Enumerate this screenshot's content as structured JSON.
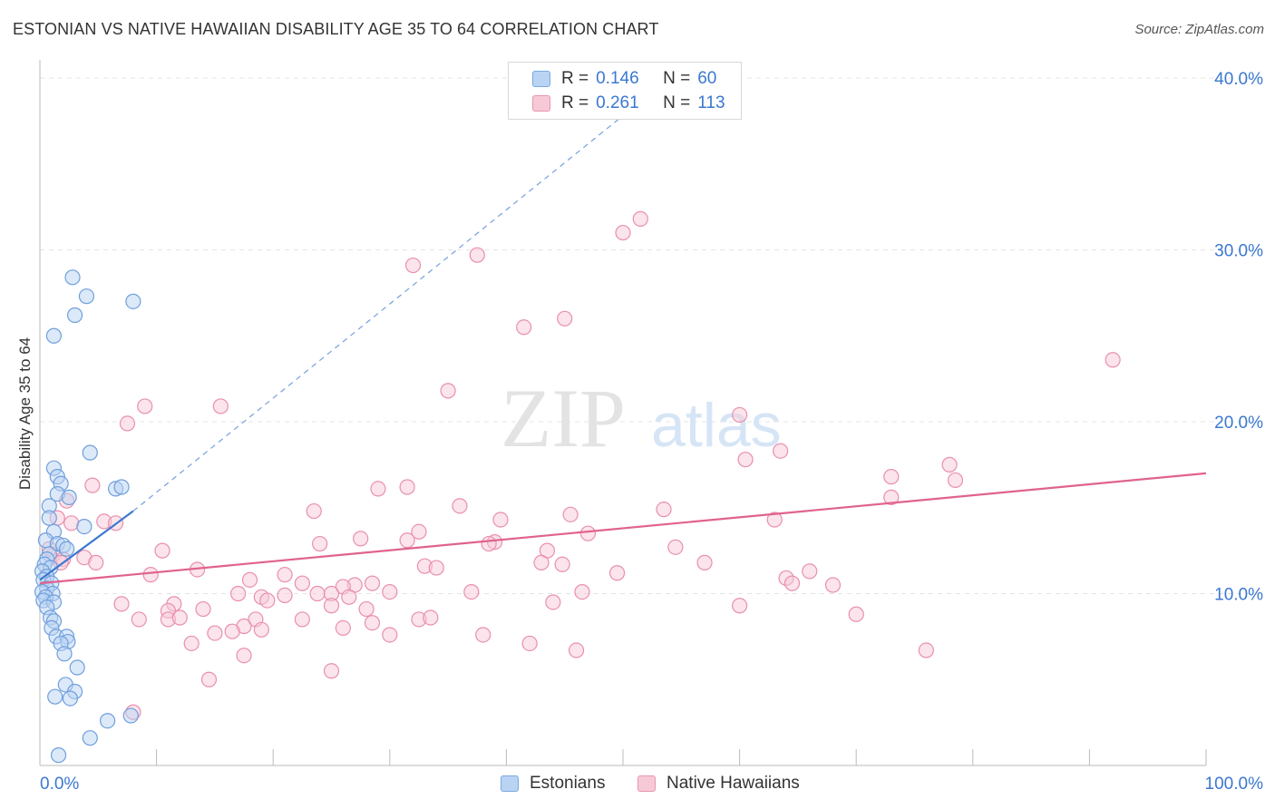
{
  "title": "ESTONIAN VS NATIVE HAWAIIAN DISABILITY AGE 35 TO 64 CORRELATION CHART",
  "source": "Source: ZipAtlas.com",
  "watermark": {
    "zip": "ZIP",
    "atlas": "atlas"
  },
  "legend": {
    "r_label": "R =",
    "n_label": "N =",
    "estonians": {
      "r": "0.146",
      "n": "60"
    },
    "hawaiians": {
      "r": "0.261",
      "n": "113"
    }
  },
  "colors": {
    "blue": "#3b78d0",
    "blue_fill": "#b9d3f3",
    "pink": "#e0628f",
    "pink_fill": "#f7c9d7",
    "grid": "#e4e4e4"
  },
  "chart_data": {
    "type": "scatter",
    "title": "ESTONIAN VS NATIVE HAWAIIAN DISABILITY AGE 35 TO 64 CORRELATION CHART",
    "xlabel": "",
    "ylabel": "Disability Age 35 to 64",
    "xlim": [
      0,
      100
    ],
    "ylim": [
      0,
      42
    ],
    "x_tick_labels": [
      "0.0%",
      "100.0%"
    ],
    "y_ticks": [
      10,
      20,
      30,
      40
    ],
    "y_tick_labels": [
      "10.0%",
      "20.0%",
      "30.0%",
      "40.0%"
    ],
    "legend_position": "bottom",
    "series": [
      {
        "name": "Estonians",
        "r": 0.146,
        "n": 60,
        "trend": {
          "x0": 0,
          "y0": 10.8,
          "x1": 8.0,
          "y1": 14.8,
          "dashed_to": [
            54,
            40
          ]
        },
        "points": [
          [
            2.8,
            28.4
          ],
          [
            4.0,
            27.3
          ],
          [
            8.0,
            27.0
          ],
          [
            3.0,
            26.2
          ],
          [
            1.2,
            25.0
          ],
          [
            4.3,
            18.2
          ],
          [
            1.2,
            17.3
          ],
          [
            1.5,
            16.8
          ],
          [
            1.8,
            16.4
          ],
          [
            6.5,
            16.1
          ],
          [
            7.0,
            16.2
          ],
          [
            1.5,
            15.8
          ],
          [
            2.5,
            15.6
          ],
          [
            0.8,
            15.1
          ],
          [
            0.8,
            14.4
          ],
          [
            3.8,
            13.9
          ],
          [
            1.2,
            13.6
          ],
          [
            0.5,
            13.1
          ],
          [
            1.5,
            12.9
          ],
          [
            2.0,
            12.8
          ],
          [
            2.3,
            12.6
          ],
          [
            0.8,
            12.3
          ],
          [
            0.6,
            12.0
          ],
          [
            0.4,
            11.7
          ],
          [
            0.9,
            11.5
          ],
          [
            0.2,
            11.3
          ],
          [
            0.6,
            11.0
          ],
          [
            0.3,
            10.8
          ],
          [
            1.0,
            10.6
          ],
          [
            0.6,
            10.3
          ],
          [
            0.2,
            10.1
          ],
          [
            1.1,
            10.0
          ],
          [
            0.5,
            9.8
          ],
          [
            0.3,
            9.6
          ],
          [
            1.2,
            9.5
          ],
          [
            0.6,
            9.2
          ],
          [
            0.9,
            8.6
          ],
          [
            1.2,
            8.4
          ],
          [
            1.0,
            8.0
          ],
          [
            1.4,
            7.5
          ],
          [
            2.3,
            7.5
          ],
          [
            2.4,
            7.2
          ],
          [
            1.8,
            7.1
          ],
          [
            2.1,
            6.5
          ],
          [
            3.2,
            5.7
          ],
          [
            2.2,
            4.7
          ],
          [
            3.0,
            4.3
          ],
          [
            1.3,
            4.0
          ],
          [
            2.6,
            3.9
          ],
          [
            5.8,
            2.6
          ],
          [
            7.8,
            2.9
          ],
          [
            4.3,
            1.6
          ],
          [
            1.6,
            0.6
          ]
        ]
      },
      {
        "name": "Native Hawaiians",
        "r": 0.261,
        "n": 113,
        "trend": {
          "x0": 0,
          "y0": 10.6,
          "x1": 100,
          "y1": 17.0
        },
        "points": [
          [
            51.5,
            31.8
          ],
          [
            50.0,
            31.0
          ],
          [
            37.5,
            29.7
          ],
          [
            32.0,
            29.1
          ],
          [
            45.0,
            26.0
          ],
          [
            41.5,
            25.5
          ],
          [
            92.0,
            23.6
          ],
          [
            35.0,
            21.8
          ],
          [
            9.0,
            20.9
          ],
          [
            15.5,
            20.9
          ],
          [
            7.5,
            19.9
          ],
          [
            60.0,
            20.4
          ],
          [
            63.5,
            18.3
          ],
          [
            60.5,
            17.8
          ],
          [
            78.0,
            17.5
          ],
          [
            73.0,
            16.8
          ],
          [
            78.5,
            16.6
          ],
          [
            4.5,
            16.3
          ],
          [
            73.0,
            15.6
          ],
          [
            31.5,
            16.2
          ],
          [
            29.0,
            16.1
          ],
          [
            2.3,
            15.4
          ],
          [
            36.0,
            15.1
          ],
          [
            53.5,
            14.9
          ],
          [
            23.5,
            14.8
          ],
          [
            45.5,
            14.6
          ],
          [
            1.5,
            14.4
          ],
          [
            5.5,
            14.2
          ],
          [
            39.5,
            14.3
          ],
          [
            6.5,
            14.1
          ],
          [
            2.7,
            14.1
          ],
          [
            63.0,
            14.3
          ],
          [
            32.5,
            13.6
          ],
          [
            47.0,
            13.5
          ],
          [
            27.5,
            13.2
          ],
          [
            31.5,
            13.1
          ],
          [
            39.0,
            13.0
          ],
          [
            38.5,
            12.9
          ],
          [
            24.0,
            12.9
          ],
          [
            54.5,
            12.7
          ],
          [
            43.5,
            12.5
          ],
          [
            10.5,
            12.5
          ],
          [
            1.2,
            12.3
          ],
          [
            2.0,
            12.0
          ],
          [
            0.8,
            12.6
          ],
          [
            3.8,
            12.1
          ],
          [
            1.8,
            11.8
          ],
          [
            4.8,
            11.8
          ],
          [
            43.0,
            11.8
          ],
          [
            44.8,
            11.7
          ],
          [
            57.0,
            11.8
          ],
          [
            33.0,
            11.6
          ],
          [
            34.0,
            11.5
          ],
          [
            13.5,
            11.4
          ],
          [
            66.0,
            11.3
          ],
          [
            49.5,
            11.2
          ],
          [
            9.5,
            11.1
          ],
          [
            21.0,
            11.1
          ],
          [
            64.0,
            10.9
          ],
          [
            18.0,
            10.8
          ],
          [
            22.5,
            10.6
          ],
          [
            27.0,
            10.5
          ],
          [
            26.0,
            10.4
          ],
          [
            64.5,
            10.6
          ],
          [
            28.5,
            10.6
          ],
          [
            68.0,
            10.5
          ],
          [
            30.0,
            10.1
          ],
          [
            17.0,
            10.0
          ],
          [
            23.8,
            10.0
          ],
          [
            46.5,
            10.1
          ],
          [
            37.0,
            10.1
          ],
          [
            25.0,
            10.0
          ],
          [
            19.0,
            9.8
          ],
          [
            21.0,
            9.9
          ],
          [
            26.5,
            9.8
          ],
          [
            19.5,
            9.6
          ],
          [
            11.5,
            9.4
          ],
          [
            7.0,
            9.4
          ],
          [
            44.0,
            9.5
          ],
          [
            60.0,
            9.3
          ],
          [
            11.0,
            9.0
          ],
          [
            14.0,
            9.1
          ],
          [
            25.0,
            9.3
          ],
          [
            28.0,
            9.1
          ],
          [
            70.0,
            8.8
          ],
          [
            8.5,
            8.5
          ],
          [
            11.0,
            8.5
          ],
          [
            12.0,
            8.6
          ],
          [
            18.5,
            8.5
          ],
          [
            22.5,
            8.5
          ],
          [
            32.5,
            8.5
          ],
          [
            33.5,
            8.6
          ],
          [
            17.5,
            8.1
          ],
          [
            28.5,
            8.3
          ],
          [
            26.0,
            8.0
          ],
          [
            15.0,
            7.7
          ],
          [
            16.5,
            7.8
          ],
          [
            19.0,
            7.9
          ],
          [
            30.0,
            7.6
          ],
          [
            38.0,
            7.6
          ],
          [
            13.0,
            7.1
          ],
          [
            42.0,
            7.1
          ],
          [
            46.0,
            6.7
          ],
          [
            76.0,
            6.7
          ],
          [
            17.5,
            6.4
          ],
          [
            25.0,
            5.5
          ],
          [
            14.5,
            5.0
          ],
          [
            8.0,
            3.1
          ]
        ]
      }
    ]
  },
  "bottom_legend": {
    "estonians": "Estonians",
    "hawaiians": "Native Hawaiians"
  }
}
